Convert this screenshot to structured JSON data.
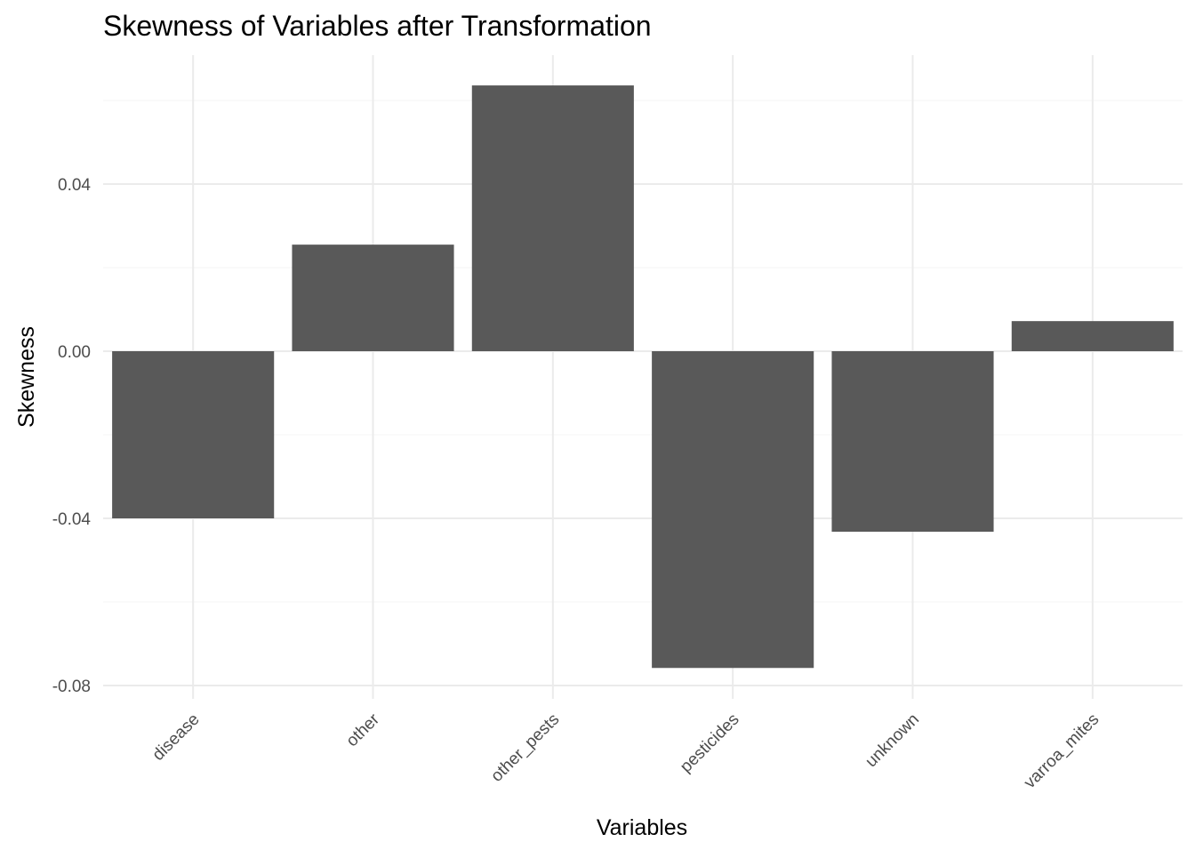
{
  "chart_data": {
    "type": "bar",
    "title": "Skewness of Variables after Transformation",
    "xlabel": "Variables",
    "ylabel": "Skewness",
    "categories": [
      "disease",
      "other",
      "other_pests",
      "pesticides",
      "unknown",
      "varroa_mites"
    ],
    "values": [
      -0.04,
      0.0255,
      0.0636,
      -0.0758,
      -0.0432,
      0.0072
    ],
    "ylim": [
      -0.082,
      0.068
    ],
    "yticks": [
      -0.08,
      -0.04,
      0.0,
      0.04
    ],
    "ytick_labels": [
      "-0.08",
      "-0.04",
      "0.00",
      "0.04"
    ],
    "grid": true,
    "bar_color": "#595959",
    "x_tick_rotation": "45 degrees"
  }
}
